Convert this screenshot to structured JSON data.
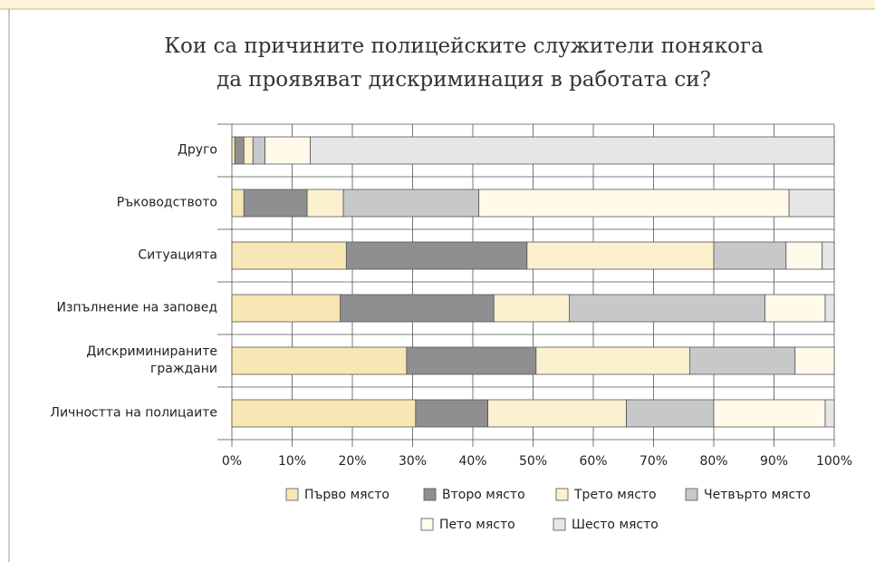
{
  "chart_data": {
    "type": "stacked_bar_horizontal",
    "title": "Кои са причините полицейските служители понякога",
    "subtitle": "да проявяват дискриминация в работата си?",
    "categories": [
      "Друго",
      "Ръководството",
      "Ситуацията",
      "Изпълнение на заповед",
      "Дискриминираните\nграждани",
      "Личността на полицаите"
    ],
    "series": [
      {
        "name": "Първо място",
        "color": "#f6e7b4",
        "values": [
          0.5,
          2,
          19,
          18,
          29,
          30.5
        ]
      },
      {
        "name": "Второ място",
        "color": "#8f8f91",
        "values": [
          1.5,
          10.5,
          30,
          25.5,
          21.5,
          12
        ]
      },
      {
        "name": "Трето място",
        "color": "#fcf1cf",
        "values": [
          1.5,
          6,
          31,
          12.5,
          25.5,
          23
        ]
      },
      {
        "name": "Четвърто място",
        "color": "#c7c8ca",
        "values": [
          2,
          22.5,
          12,
          32.5,
          17.5,
          14.5
        ]
      },
      {
        "name": "Пето място",
        "color": "#fffae9",
        "values": [
          7.5,
          51.5,
          6,
          10,
          6.5,
          18.5
        ]
      },
      {
        "name": "Шесто място",
        "color": "#e6e6e7",
        "values": [
          87,
          7.5,
          2,
          1.5,
          0,
          1.5
        ]
      }
    ],
    "xlim": [
      0,
      100
    ],
    "xticks": [
      {
        "value": 0,
        "label": "0%"
      },
      {
        "value": 10,
        "label": "10%"
      },
      {
        "value": 20,
        "label": "20%"
      },
      {
        "value": 30,
        "label": "30%"
      },
      {
        "value": 40,
        "label": "40%"
      },
      {
        "value": 50,
        "label": "50%"
      },
      {
        "value": 60,
        "label": "60%"
      },
      {
        "value": 70,
        "label": "70%"
      },
      {
        "value": 80,
        "label": "80%"
      },
      {
        "value": 90,
        "label": "90%"
      },
      {
        "value": 100,
        "label": "100%"
      }
    ],
    "grid": true,
    "legend": "bottom"
  }
}
